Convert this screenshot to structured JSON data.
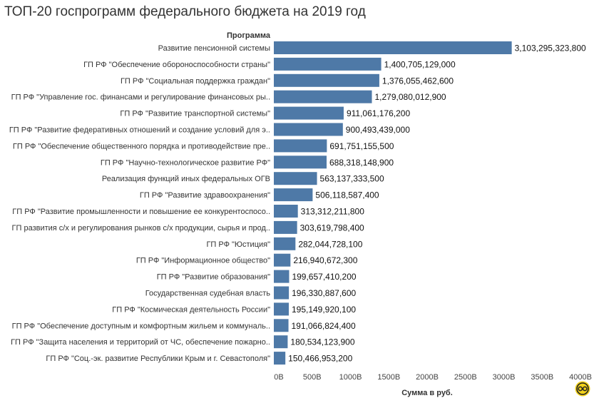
{
  "chart_data": {
    "type": "bar",
    "orientation": "horizontal",
    "title": "ТОП-20 госпрограмм федерального бюджета на 2019 год",
    "category_header": "Программа",
    "xlabel": "Сумма в руб.",
    "xlim": [
      0,
      4000000000000
    ],
    "xticks": [
      "0B",
      "500B",
      "1000B",
      "1500B",
      "2000B",
      "2500B",
      "3000B",
      "3500B",
      "4000B"
    ],
    "grid": false,
    "bar_color": "#4e79a7",
    "categories": [
      "Развитие пенсионной системы",
      "ГП РФ \"Обеспечение обороноспособности страны\"",
      "ГП РФ \"Социальная поддержка граждан\"",
      "ГП РФ \"Управление гос. финансами и регулирование финансовых ры..",
      "ГП РФ \"Развитие транспортной системы\"",
      "ГП РФ \"Развитие федеративных отношений и создание условий для э..",
      "ГП РФ \"Обеспечение общественного порядка и противодействие пре..",
      "ГП РФ \"Научно-технологическое развитие РФ\"",
      "Реализация функций иных федеральных ОГВ",
      "ГП РФ \"Развитие здравоохранения\"",
      "ГП РФ \"Развитие промышленности и повышение ее конкурентоспосо..",
      "ГП развития с/х и регулирования рынков с/х продукции, сырья и прод..",
      "ГП РФ \"Юстиция\"",
      "ГП РФ \"Информационное общество\"",
      "ГП РФ \"Развитие образования\"",
      "Государственная судебная власть",
      "ГП РФ \"Космическая деятельность России\"",
      "ГП РФ \"Обеспечение доступным и комфортным жильем и коммуналь..",
      "ГП РФ \"Защита населения и территорий от ЧС, обеспечение пожарно..",
      "ГП РФ \"Соц.-эк. развитие Республики Крым и г. Севастополя\""
    ],
    "values": [
      3103295323800,
      1400705129000,
      1376055462600,
      1279080012900,
      911061176200,
      900493439000,
      691751155500,
      688318148900,
      563137333500,
      506118587400,
      313312211800,
      303619798400,
      282044728100,
      216940672300,
      199657410200,
      196330887600,
      195149920100,
      191066824400,
      180534123900,
      150466953200
    ],
    "value_labels": [
      "3,103,295,323,800",
      "1,400,705,129,000",
      "1,376,055,462,600",
      "1,279,080,012,900",
      "911,061,176,200",
      "900,493,439,000",
      "691,751,155,500",
      "688,318,148,900",
      "563,137,333,500",
      "506,118,587,400",
      "313,312,211,800",
      "303,619,798,400",
      "282,044,728,100",
      "216,940,672,300",
      "199,657,410,200",
      "196,330,887,600",
      "195,149,920,100",
      "191,066,824,400",
      "180,534,123,900",
      "150,466,953,200"
    ]
  }
}
